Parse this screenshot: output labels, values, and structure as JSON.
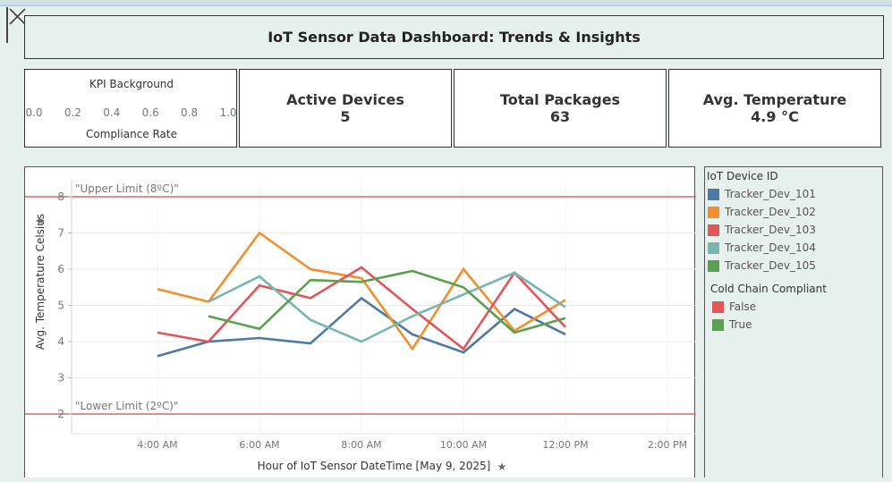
{
  "dashboard": {
    "title": "IoT Sensor Data Dashboard: Trends & Insights"
  },
  "kpi_background": {
    "title": "KPI Background",
    "subtitle": "Compliance Rate",
    "ticks": [
      "0.0",
      "0.2",
      "0.4",
      "0.6",
      "0.8",
      "1.0"
    ]
  },
  "kpis": [
    {
      "label": "Active Devices",
      "value": "5"
    },
    {
      "label": "Total Packages",
      "value": "63"
    },
    {
      "label": "Avg. Temperature",
      "value": "4.9 °C"
    }
  ],
  "legend": {
    "device_title": "IoT Device ID",
    "compliance_title": "Cold Chain Compliant",
    "compliance_items": [
      {
        "label": "False",
        "color": "#e15759"
      },
      {
        "label": "True",
        "color": "#59a14f"
      }
    ]
  },
  "chart_data": {
    "type": "line",
    "xlabel": "Hour of IoT Sensor DateTime [May 9, 2025]",
    "ylabel": "Avg. Temperature Celsius",
    "xlim": [
      3,
      14
    ],
    "ylim": [
      1.5,
      8.5
    ],
    "x_ticks": [
      {
        "value": 4,
        "label": "4:00 AM"
      },
      {
        "value": 6,
        "label": "6:00 AM"
      },
      {
        "value": 8,
        "label": "8:00 AM"
      },
      {
        "value": 10,
        "label": "10:00 AM"
      },
      {
        "value": 12,
        "label": "12:00 PM"
      },
      {
        "value": 14,
        "label": "2:00 PM"
      }
    ],
    "y_ticks": [
      2,
      3,
      4,
      5,
      6,
      7,
      8
    ],
    "reference_lines": [
      {
        "label": "\"Upper Limit (8ºC)\"",
        "value": 8,
        "color": "#d9686b"
      },
      {
        "label": "\"Lower Limit (2ºC)\"",
        "value": 2,
        "color": "#d9686b"
      }
    ],
    "series": [
      {
        "name": "Tracker_Dev_101",
        "color": "#4e79a7",
        "x": [
          4,
          5,
          6,
          7,
          8,
          9,
          10,
          11,
          12
        ],
        "values": [
          3.6,
          4.0,
          4.1,
          3.95,
          5.2,
          4.2,
          3.7,
          4.9,
          4.2
        ]
      },
      {
        "name": "Tracker_Dev_102",
        "color": "#f28e2b",
        "x": [
          4,
          5,
          6,
          7,
          8,
          9,
          10,
          11,
          12
        ],
        "values": [
          5.45,
          5.1,
          7.0,
          6.0,
          5.75,
          3.8,
          6.0,
          4.3,
          5.15
        ]
      },
      {
        "name": "Tracker_Dev_103",
        "color": "#e15759",
        "x": [
          4,
          5,
          6,
          7,
          8,
          9,
          10,
          11,
          12
        ],
        "values": [
          4.25,
          4.0,
          5.55,
          5.2,
          6.05,
          4.9,
          3.8,
          5.9,
          4.4
        ]
      },
      {
        "name": "Tracker_Dev_104",
        "color": "#76b7b2",
        "x": [
          5,
          6,
          7,
          8,
          9,
          10,
          11,
          12
        ],
        "values": [
          5.1,
          5.8,
          4.6,
          4.0,
          4.7,
          5.3,
          5.9,
          4.95
        ]
      },
      {
        "name": "Tracker_Dev_105",
        "color": "#59a14f",
        "x": [
          5,
          6,
          7,
          8,
          9,
          10,
          11,
          12
        ],
        "values": [
          4.7,
          4.35,
          5.7,
          5.65,
          5.95,
          5.5,
          4.25,
          4.65
        ]
      }
    ],
    "grid": true,
    "legend_position": "right"
  }
}
